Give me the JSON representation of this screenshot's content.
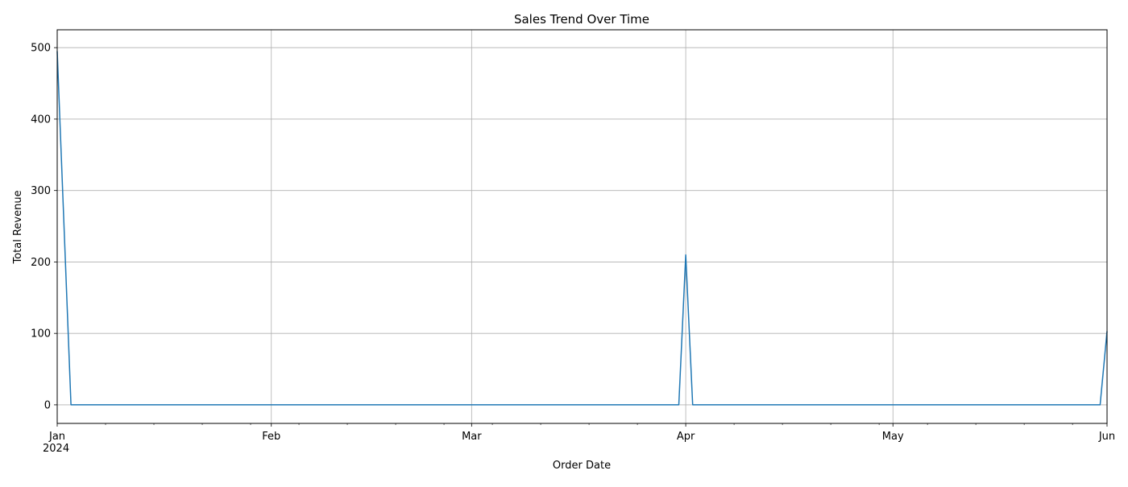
{
  "chart_data": {
    "type": "line",
    "title": "Sales Trend Over Time",
    "xlabel": "Order Date",
    "ylabel": "Total Revenue",
    "x_ticks": [
      {
        "date": "2024-01-01",
        "label": "Jan",
        "sublabel": "2024"
      },
      {
        "date": "2024-02-01",
        "label": "Feb"
      },
      {
        "date": "2024-03-01",
        "label": "Mar"
      },
      {
        "date": "2024-04-01",
        "label": "Apr"
      },
      {
        "date": "2024-05-01",
        "label": "May"
      },
      {
        "date": "2024-06-01",
        "label": "Jun"
      }
    ],
    "minor_tick_dates": [
      "2024-01-08",
      "2024-01-15",
      "2024-01-22",
      "2024-01-29",
      "2024-02-05",
      "2024-02-12",
      "2024-02-19",
      "2024-02-26",
      "2024-03-04",
      "2024-03-11",
      "2024-03-18",
      "2024-03-25",
      "2024-04-08",
      "2024-04-15",
      "2024-04-22",
      "2024-04-29",
      "2024-05-06",
      "2024-05-13",
      "2024-05-20",
      "2024-05-27"
    ],
    "y_ticks": [
      0,
      100,
      200,
      300,
      400,
      500
    ],
    "xlim": [
      "2024-01-01",
      "2024-06-01"
    ],
    "ylim": [
      -26,
      525
    ],
    "grid": true,
    "series": [
      {
        "color": "#1f77b4",
        "points": [
          {
            "x": "2024-01-01",
            "y": 495
          },
          {
            "x": "2024-01-03",
            "y": 0
          },
          {
            "x": "2024-03-31",
            "y": 0
          },
          {
            "x": "2024-04-01",
            "y": 210
          },
          {
            "x": "2024-04-02",
            "y": 0
          },
          {
            "x": "2024-05-31",
            "y": 0
          },
          {
            "x": "2024-06-01",
            "y": 103
          }
        ]
      }
    ]
  }
}
